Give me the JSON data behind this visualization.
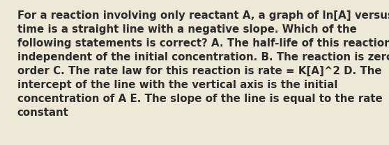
{
  "lines": [
    "For a reaction involving only reactant A, a graph of ln[A] versus",
    "time is a straight line with a negative slope. Which of the",
    "following statements is correct? A. The half-life of this reaction is",
    "independent of the initial concentration. B. The reaction is zero",
    "order C. The rate law for this reaction is rate = K[A]^2 D. The",
    "intercept of the line with the vertical axis is the initial",
    "concentration of A E. The slope of the line is equal to the rate",
    "constant"
  ],
  "background_color": "#ede8d8",
  "text_color": "#2b2b2b",
  "font_size": 10.8,
  "font_family": "DejaVu Sans",
  "fig_width": 5.58,
  "fig_height": 2.09,
  "dpi": 100
}
